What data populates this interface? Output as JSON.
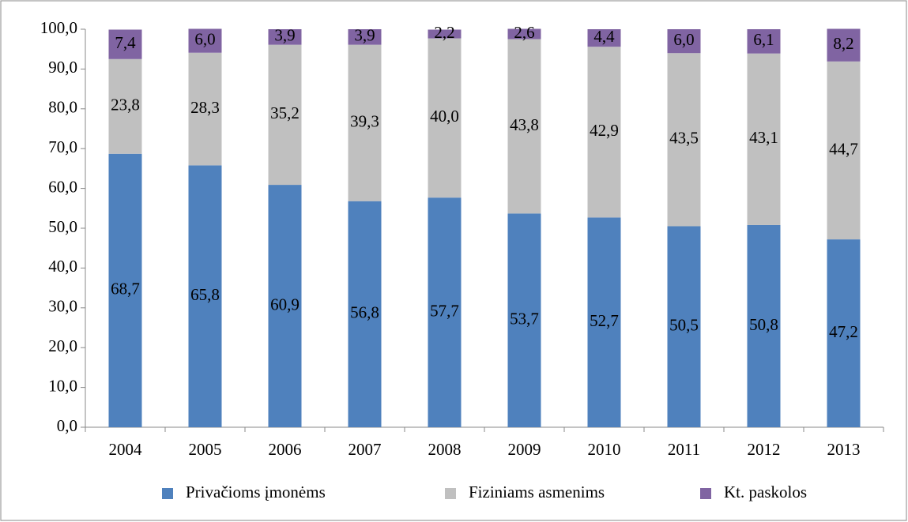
{
  "chart_data": {
    "type": "stacked_bar",
    "categories": [
      "2004",
      "2005",
      "2006",
      "2007",
      "2008",
      "2009",
      "2010",
      "2011",
      "2012",
      "2013"
    ],
    "series": [
      {
        "name": "Privačioms įmonėms",
        "color": "#4f81bd",
        "values": [
          68.7,
          65.8,
          60.9,
          56.8,
          57.7,
          53.7,
          52.7,
          50.5,
          50.8,
          47.2
        ],
        "value_labels": [
          "68,7",
          "65,8",
          "60,9",
          "56,8",
          "57,7",
          "53,7",
          "52,7",
          "50,5",
          "50,8",
          "47,2"
        ]
      },
      {
        "name": "Fiziniams asmenims",
        "color": "#c0c0c0",
        "values": [
          23.8,
          28.3,
          35.2,
          39.3,
          40.0,
          43.8,
          42.9,
          43.5,
          43.1,
          44.7
        ],
        "value_labels": [
          "23,8",
          "28,3",
          "35,2",
          "39,3",
          "40,0",
          "43,8",
          "42,9",
          "43,5",
          "43,1",
          "44,7"
        ]
      },
      {
        "name": "Kt. paskolos",
        "color": "#8064a2",
        "values": [
          7.4,
          6.0,
          3.9,
          3.9,
          2.2,
          2.6,
          4.4,
          6.0,
          6.1,
          8.2
        ],
        "value_labels": [
          "7,4",
          "6,0",
          "3,9",
          "3,9",
          "2,2",
          "2,6",
          "4,4",
          "6,0",
          "6,1",
          "8,2"
        ]
      }
    ],
    "ylim": [
      0,
      100
    ],
    "yticks": [
      {
        "value": 0,
        "label": "0,0"
      },
      {
        "value": 10,
        "label": "10,0"
      },
      {
        "value": 20,
        "label": "20,0"
      },
      {
        "value": 30,
        "label": "30,0"
      },
      {
        "value": 40,
        "label": "40,0"
      },
      {
        "value": 50,
        "label": "50,0"
      },
      {
        "value": 60,
        "label": "60,0"
      },
      {
        "value": 70,
        "label": "70,0"
      },
      {
        "value": 80,
        "label": "80,0"
      },
      {
        "value": 90,
        "label": "90,0"
      },
      {
        "value": 100,
        "label": "100,0"
      }
    ],
    "legend": "bottom"
  }
}
